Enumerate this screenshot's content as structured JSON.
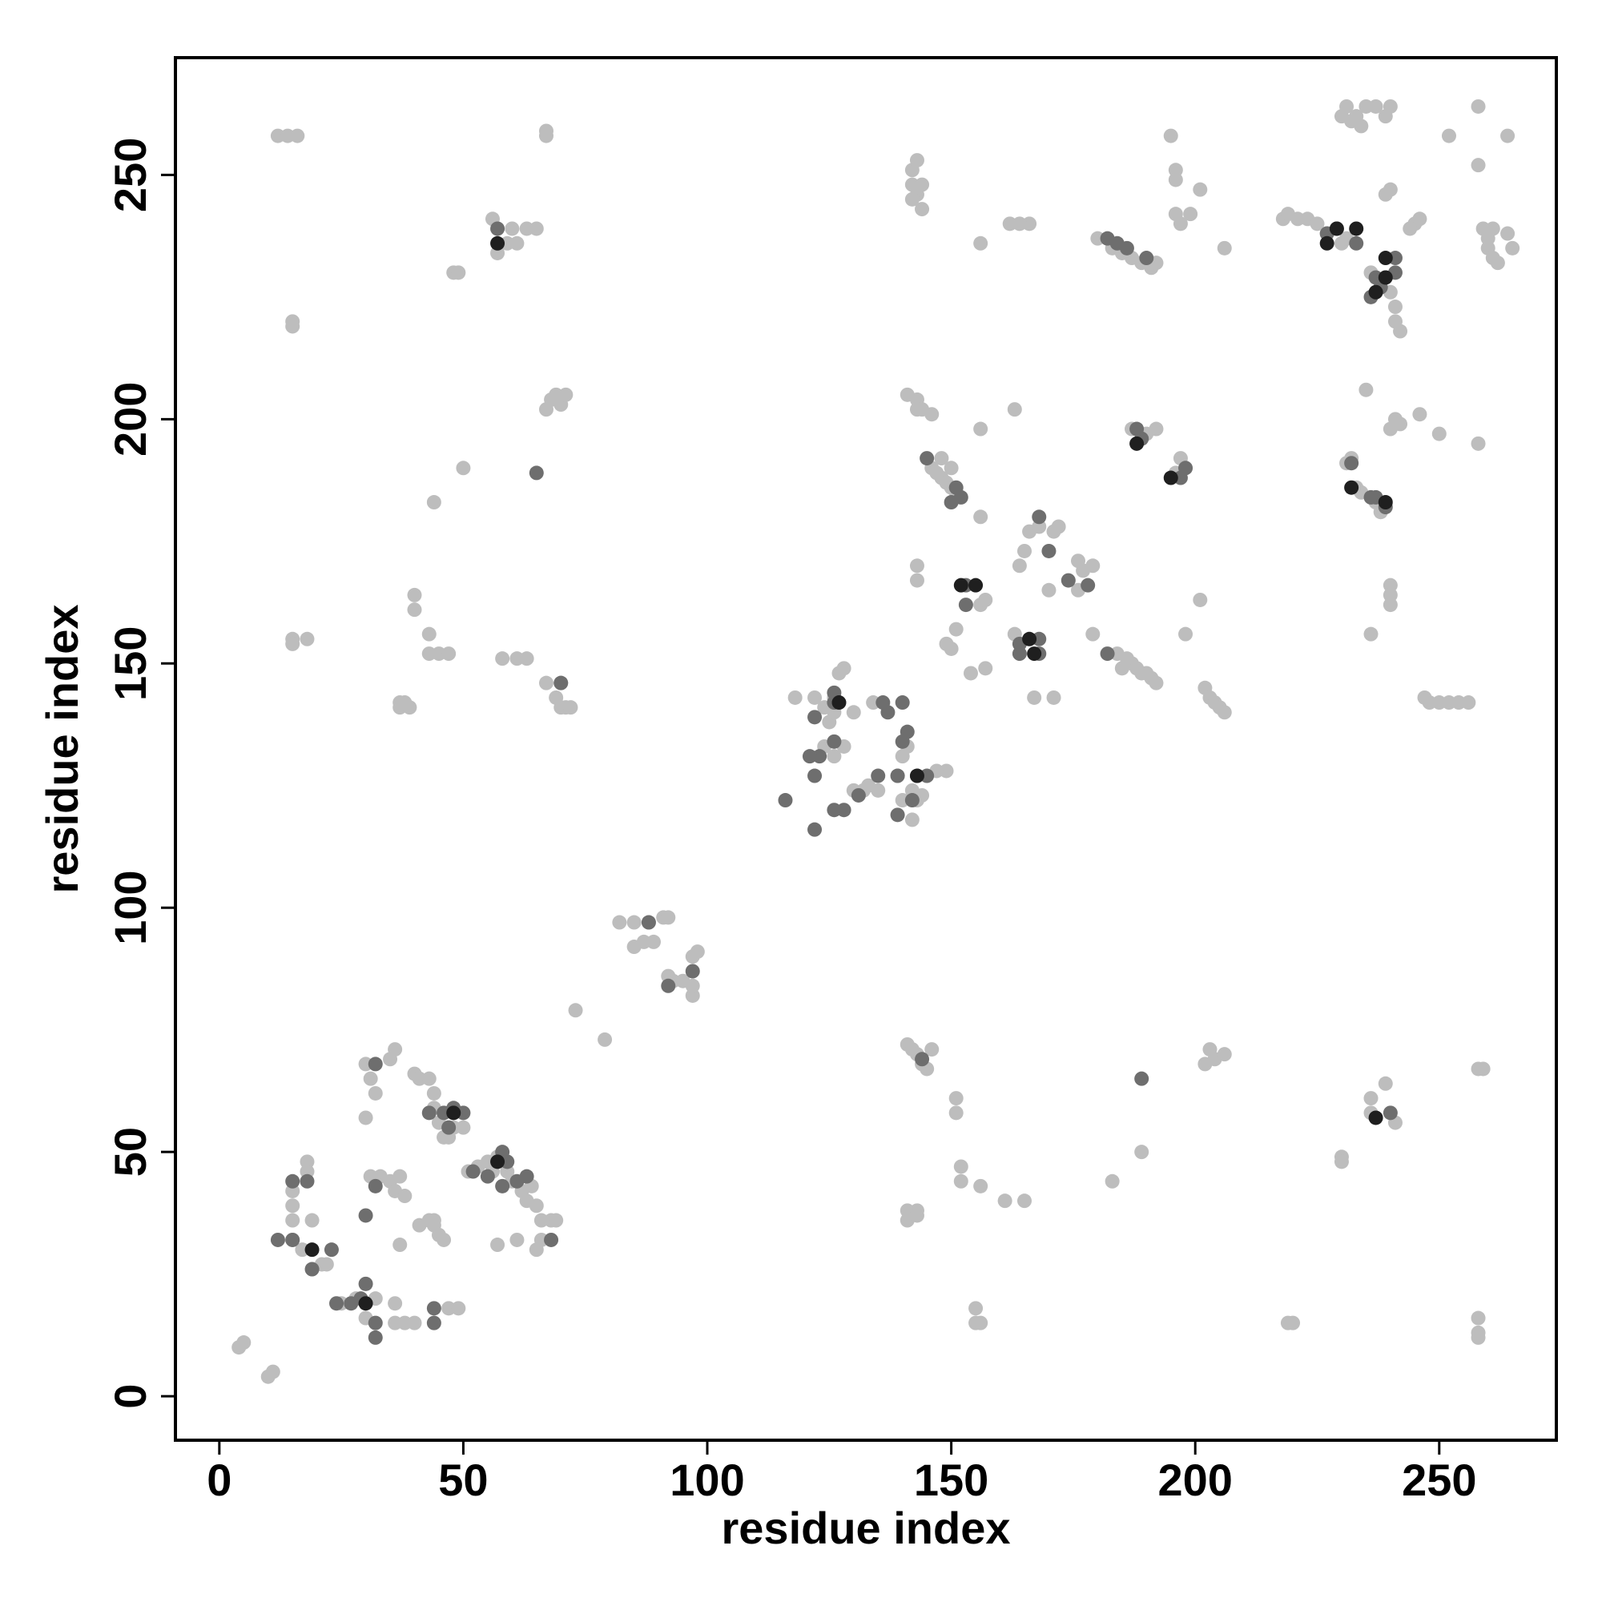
{
  "chart_data": {
    "type": "scatter",
    "x_label": "residue index",
    "y_label": "residue index",
    "xlim": [
      -9,
      274
    ],
    "ylim": [
      -9,
      274
    ],
    "xticks": [
      0,
      50,
      100,
      150,
      200,
      250
    ],
    "yticks": [
      0,
      50,
      100,
      150,
      200,
      250
    ],
    "series": [
      {
        "color": "#bdbdbd",
        "x": [
          5,
          4,
          11,
          10,
          12,
          14,
          16,
          15,
          15,
          15,
          18,
          15,
          67,
          67,
          56,
          60,
          63,
          65,
          59,
          61,
          57,
          48,
          49,
          44,
          50,
          40,
          40,
          43,
          43,
          45,
          47,
          37,
          38,
          39,
          37,
          58,
          61,
          63,
          67,
          69,
          70,
          71,
          72,
          70,
          67,
          68,
          69,
          70,
          71,
          88,
          85,
          82,
          85,
          87,
          89,
          91,
          92,
          92,
          93,
          95,
          97,
          97,
          98,
          97,
          73,
          79,
          30,
          31,
          32,
          30,
          35,
          36,
          40,
          41,
          43,
          44,
          44,
          45,
          47,
          48,
          50,
          46,
          18,
          18,
          15,
          15,
          15,
          15,
          17,
          19,
          19,
          21,
          25,
          28,
          30,
          32,
          36,
          38,
          40,
          36,
          37,
          31,
          33,
          35,
          36,
          38,
          37,
          41,
          43,
          44,
          45,
          46,
          44,
          51,
          53,
          55,
          56,
          57,
          59,
          60,
          62,
          63,
          64,
          65,
          66,
          68,
          69,
          61,
          65,
          66,
          57,
          47,
          49,
          22,
          118,
          122,
          124,
          125,
          126,
          127,
          128,
          126,
          130,
          134,
          124,
          126,
          128,
          130,
          132,
          133,
          135,
          139,
          140,
          141,
          142,
          143,
          144,
          142,
          149,
          147,
          140,
          141,
          142,
          143,
          144,
          146,
          145,
          141,
          141,
          143,
          143,
          151,
          151,
          152,
          152,
          156,
          161,
          165,
          155,
          156,
          155,
          142,
          142,
          143,
          143,
          144,
          144,
          142,
          141,
          143,
          144,
          146,
          143,
          146,
          147,
          148,
          149,
          150,
          148,
          150,
          151,
          156,
          163,
          156,
          162,
          166,
          164,
          143,
          143,
          150,
          149,
          151,
          154,
          156,
          157,
          156,
          157,
          163,
          164,
          165,
          166,
          168,
          170,
          171,
          172,
          167,
          171,
          176,
          177,
          176,
          179,
          179,
          180,
          183,
          185,
          187,
          189,
          191,
          192,
          183,
          189,
          184,
          185,
          186,
          187,
          188,
          189,
          190,
          191,
          192,
          187,
          190,
          192,
          196,
          197,
          198,
          195,
          196,
          196,
          196,
          197,
          199,
          201,
          206,
          198,
          201,
          202,
          203,
          204,
          205,
          206,
          202,
          203,
          204,
          206,
          218,
          219,
          221,
          223,
          225,
          227,
          230,
          231,
          230,
          231,
          233,
          235,
          237,
          239,
          240,
          232,
          234,
          231,
          232,
          233,
          234,
          237,
          238,
          235,
          236,
          240,
          240,
          240,
          239,
          240,
          241,
          241,
          242,
          240,
          239,
          236,
          238,
          247,
          248,
          250,
          252,
          254,
          256,
          245,
          246,
          244,
          246,
          250,
          252,
          258,
          258,
          258,
          240,
          241,
          242,
          259,
          261,
          260,
          260,
          261,
          262,
          264,
          265,
          264,
          258,
          259,
          258,
          258,
          258,
          219,
          220,
          230,
          230,
          236,
          239,
          241,
          236
        ],
        "values": [
          11,
          10,
          5,
          4,
          258,
          258,
          258,
          220,
          219,
          155,
          155,
          154,
          259,
          258,
          241,
          239,
          239,
          239,
          236,
          236,
          234,
          230,
          230,
          183,
          190,
          164,
          161,
          156,
          152,
          152,
          152,
          141,
          142,
          141,
          142,
          151,
          151,
          151,
          146,
          143,
          141,
          141,
          141,
          146,
          202,
          204,
          205,
          203,
          205,
          97,
          97,
          97,
          92,
          93,
          93,
          98,
          98,
          86,
          85,
          85,
          82,
          84,
          91,
          90,
          79,
          73,
          68,
          65,
          62,
          57,
          69,
          71,
          66,
          65,
          65,
          62,
          59,
          56,
          53,
          55,
          55,
          53,
          48,
          46,
          42,
          39,
          36,
          32,
          30,
          36,
          26,
          27,
          19,
          20,
          16,
          20,
          15,
          15,
          15,
          19,
          31,
          45,
          45,
          44,
          42,
          41,
          45,
          35,
          36,
          36,
          33,
          32,
          35,
          46,
          47,
          48,
          46,
          49,
          46,
          44,
          42,
          40,
          43,
          39,
          36,
          36,
          36,
          32,
          30,
          32,
          31,
          18,
          18,
          27,
          143,
          143,
          141,
          138,
          143,
          148,
          149,
          140,
          140,
          142,
          133,
          131,
          133,
          124,
          124,
          125,
          124,
          127,
          131,
          133,
          124,
          122,
          123,
          118,
          128,
          128,
          122,
          72,
          71,
          70,
          68,
          71,
          67,
          38,
          36,
          38,
          37,
          61,
          58,
          47,
          44,
          43,
          40,
          40,
          18,
          15,
          15,
          251,
          248,
          253,
          246,
          243,
          248,
          245,
          205,
          204,
          202,
          201,
          202,
          190,
          189,
          188,
          187,
          186,
          192,
          190,
          185,
          198,
          202,
          236,
          240,
          240,
          240,
          170,
          167,
          153,
          154,
          157,
          148,
          162,
          163,
          180,
          149,
          156,
          170,
          173,
          177,
          178,
          165,
          177,
          178,
          143,
          143,
          171,
          169,
          165,
          170,
          156,
          237,
          235,
          234,
          233,
          232,
          231,
          232,
          44,
          50,
          152,
          149,
          151,
          150,
          149,
          148,
          148,
          147,
          146,
          198,
          197,
          198,
          189,
          192,
          190,
          258,
          251,
          249,
          242,
          240,
          242,
          247,
          235,
          156,
          163,
          145,
          143,
          142,
          141,
          140,
          68,
          71,
          69,
          70,
          241,
          242,
          241,
          241,
          240,
          238,
          236,
          237,
          262,
          264,
          262,
          264,
          264,
          262,
          264,
          261,
          260,
          191,
          192,
          186,
          185,
          183,
          181,
          206,
          156,
          166,
          164,
          162,
          246,
          247,
          223,
          220,
          218,
          226,
          229,
          230,
          228,
          143,
          142,
          142,
          142,
          142,
          142,
          240,
          241,
          239,
          201,
          197,
          258,
          264,
          252,
          195,
          198,
          200,
          199,
          239,
          239,
          237,
          235,
          233,
          232,
          238,
          235,
          258,
          67,
          67,
          16,
          13,
          12,
          15,
          15,
          49,
          48,
          61,
          64,
          56,
          58
        ]
      },
      {
        "color": "#6e6e6e",
        "x": [
          65,
          57,
          126,
          126,
          126,
          122,
          123,
          121,
          122,
          116,
          122,
          126,
          128,
          131,
          135,
          137,
          140,
          139,
          140,
          141,
          145,
          143,
          142,
          139,
          145,
          151,
          152,
          150,
          153,
          153,
          164,
          168,
          168,
          164,
          168,
          170,
          174,
          178,
          182,
          182,
          184,
          186,
          190,
          188,
          189,
          197,
          198,
          229,
          233,
          237,
          236,
          238,
          241,
          241,
          232,
          236,
          237,
          239,
          227,
          18,
          15,
          12,
          15,
          23,
          19,
          24,
          27,
          29,
          30,
          30,
          32,
          32,
          32,
          32,
          44,
          44,
          43,
          46,
          47,
          48,
          50,
          52,
          55,
          58,
          59,
          58,
          61,
          63,
          68,
          70,
          88,
          97,
          92,
          136,
          144,
          189,
          240
        ],
        "values": [
          189,
          239,
          144,
          142,
          134,
          139,
          131,
          131,
          127,
          122,
          116,
          120,
          120,
          123,
          127,
          140,
          142,
          127,
          134,
          136,
          127,
          127,
          122,
          119,
          192,
          186,
          184,
          183,
          166,
          162,
          152,
          152,
          155,
          154,
          180,
          173,
          167,
          166,
          152,
          237,
          236,
          235,
          233,
          198,
          196,
          188,
          190,
          239,
          236,
          229,
          225,
          227,
          233,
          230,
          191,
          184,
          184,
          182,
          238,
          44,
          44,
          32,
          32,
          30,
          26,
          19,
          19,
          20,
          23,
          37,
          15,
          12,
          43,
          68,
          18,
          15,
          58,
          58,
          55,
          59,
          58,
          46,
          45,
          50,
          48,
          43,
          44,
          45,
          32,
          146,
          97,
          87,
          84,
          142,
          69,
          65,
          58
        ]
      },
      {
        "color": "#1f1f1f",
        "x": [
          57,
          127,
          143,
          19,
          30,
          48,
          57,
          229,
          233,
          239,
          239,
          237,
          152,
          155,
          166,
          167,
          188,
          195,
          227,
          239,
          237,
          232
        ],
        "values": [
          236,
          142,
          127,
          30,
          19,
          58,
          48,
          239,
          239,
          233,
          229,
          57,
          166,
          166,
          155,
          152,
          195,
          188,
          236,
          183,
          226,
          186
        ]
      }
    ]
  }
}
